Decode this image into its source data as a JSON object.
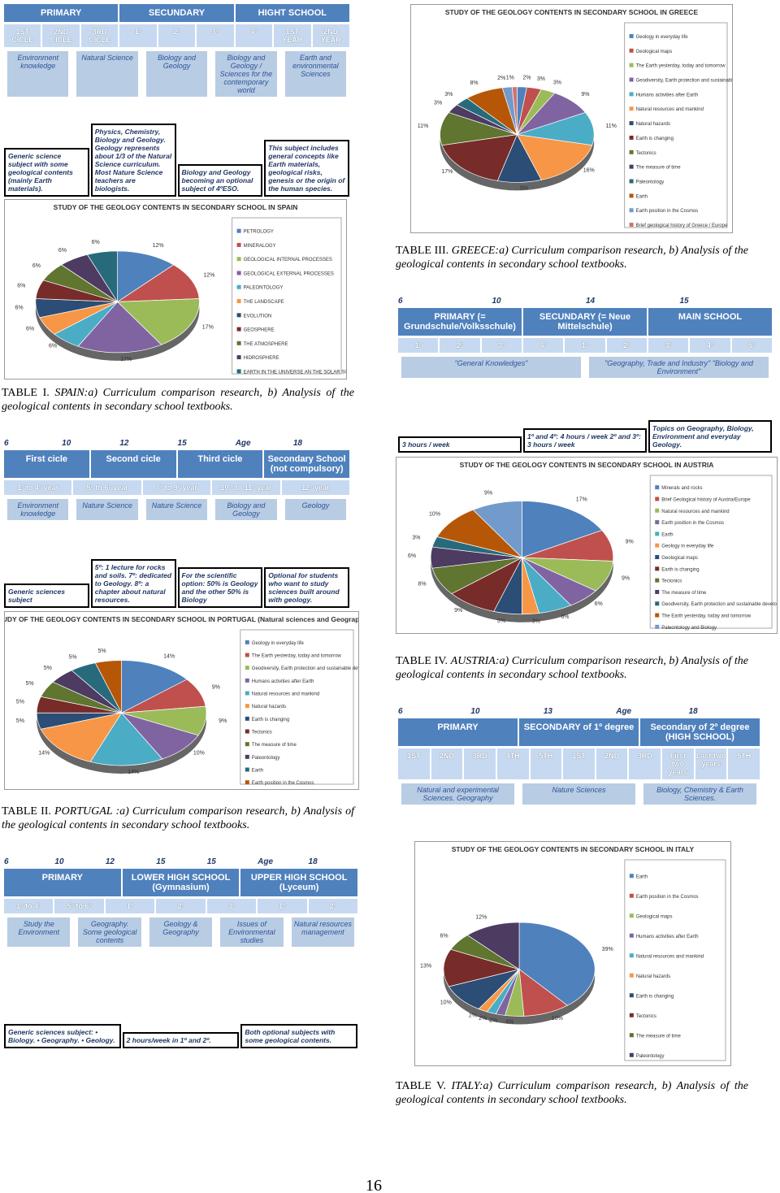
{
  "page_number": "16",
  "pie_colors": [
    "#4f81bd",
    "#c0504d",
    "#9bbb59",
    "#8064a2",
    "#4bacc6",
    "#f79646",
    "#2c4d75",
    "#772c2a",
    "#5f7530",
    "#4d3b62",
    "#276a7c",
    "#b65708",
    "#729aca",
    "#cd7371"
  ],
  "schemas": [
    {
      "ages": [],
      "headers": [
        "PRIMARY",
        "SECUNDARY",
        "HIGHT SCHOOL"
      ],
      "sub": [
        "1ST CICLE",
        "2ND CICLE",
        "3RD CICLE",
        "1º",
        "2º",
        "3º",
        "4º",
        "1ST YEAR",
        "2ND YEAR"
      ],
      "subjects": [
        "Environment knowledge",
        "Natural Science",
        "Biology and Geology",
        "Biology and Geology / Sciences for the contemporary world",
        "Earth and environmental Sciences"
      ],
      "notes": [
        "Generic science subject with some geological contents (mainly Earth materials).",
        "Physics, Chemistry, Biology and Geology. Geology represents about 1/3 of the Natural Science curriculum. Most Nature Science teachers are biologists.",
        "Biology and Geology becoming an optional subject of 4ºESO.",
        "This subject includes general concepts like Earth materials, geological risks, genesis or the origin of the human species."
      ]
    },
    {
      "ages": [
        "6",
        "10",
        "12",
        "15",
        "Age",
        "18"
      ],
      "headers": [
        "First cicle",
        "Second cicle",
        "Third cicle",
        "Secondary School (not compulsory)"
      ],
      "sub": [
        "1º to 4º year",
        "5º to 6º year",
        "7º to 9º year",
        "10 º to 11º year",
        "12º year"
      ],
      "subjects": [
        "Environment knowledge",
        "Nature Science",
        "Nature Science",
        "Biology and Geology",
        "Geology"
      ],
      "notes": [
        "Generic sciences subject",
        "5º: 1 lecture for rocks and soils. 7º: dedicated to Geology. 8º: a chapter about natural resources.",
        "For the scientific option: 50% is Geology and the other 50% is Biology",
        "Optional for students who want to study sciences built around with geology."
      ]
    },
    {
      "ages": [
        "6",
        "10",
        "12",
        "15",
        "15",
        "Age",
        "18"
      ],
      "headers": [
        "PRIMARY",
        "LOWER HIGH SCHOOL (Gymnasium)",
        "UPPER HIGH SCHOOL (Lyceum)"
      ],
      "sub": [
        "1º to 4º",
        "5º to 6º",
        "1º",
        "2º",
        "3º",
        "1º",
        "2º"
      ],
      "subjects": [
        "Study the Environment",
        "Geography. Some geological contents",
        "Geology & Geography",
        "Issues of Environmental studies",
        "Natural resources management"
      ],
      "notes": [
        "Generic sciences subject: • Biology. • Geography. • Geology.",
        "2 hours/week in 1º and 2º.",
        "Both optional subjects with some geological contents."
      ]
    },
    {
      "ages": [
        "6",
        "10",
        "14",
        "15"
      ],
      "headers": [
        "PRIMARY (= Grundschule/Volksschule)",
        "SECUNDARY (= Neue Mittelschule)",
        "MAIN SCHOOL"
      ],
      "sub": [
        "1º",
        "2º",
        "3º",
        "4º",
        "1º",
        "2º",
        "3º",
        "4º",
        "5º"
      ],
      "subjects": [
        "\"General Knowledges\"",
        "\"Geography, Trade and Industry\" \"Biology and Environment\""
      ],
      "notes": [
        "3 hours / week",
        "1º and 4º: 4 hours / week 2º and 3º: 3 hours / week",
        "Topics on Geography, Biology, Environment and everyday Geology."
      ]
    },
    {
      "ages": [
        "6",
        "10",
        "13",
        "Age",
        "18"
      ],
      "headers": [
        "PRIMARY",
        "SECONDARY of 1º degree",
        "Secondary of 2º degree (HIGH SCHOOL)"
      ],
      "sub": [
        "1ST",
        "2ND",
        "3RD",
        "4TH",
        "5TH",
        "1ST",
        "2ND",
        "3RD",
        "First two years",
        "Last two years",
        "5TH"
      ],
      "subjects": [
        "Natural and experimental Sciences. Geography",
        "Nature Sciences",
        "Biology, Chemistry & Earth Sciences."
      ],
      "notes": []
    }
  ],
  "pies": [
    {
      "title": "STUDY OF THE GEOLOGY CONTENTS IN SECONDARY SCHOOL IN SPAIN",
      "labels": [
        "PETROLOGY",
        "MINERALOGY",
        "GEOLOGICAL INTERNAL PROCESSES",
        "GEOLOGICAL EXTERNAL PROCESSES",
        "PALEONTOLOGY",
        "THE LANDSCAPE",
        "EVOLUTION",
        "GEOSPHERE",
        "THE ATMOSPHERE",
        "HIDROSPHERE",
        "EARTH IN THE UNIVERSE AN THE SOLAR SISTEM"
      ],
      "values": [
        12,
        12,
        17,
        17,
        6,
        6,
        6,
        6,
        6,
        6,
        6
      ],
      "value_labels": [
        "12%",
        "12%",
        "17%",
        "17%",
        "6%",
        "6%",
        "6%",
        "6%",
        "6%",
        "6%",
        "6%"
      ]
    },
    {
      "title": "STUDY OF THE GEOLOGY CONTENTS IN SECONDARY SCHOOL IN GREECE",
      "labels": [
        "Geology in everyday life",
        "Geological maps",
        "The Earth yesterday, today and tomorrow",
        "Geodiversity, Earth protection and sustainable development, ecosystems",
        "Humans activities after Earth",
        "Natural resources and mankind",
        "Natural hazards",
        "Earth is changing",
        "Tectonics",
        "The measure of time",
        "Paleontology",
        "Earth",
        "Earth position in the Cosmos",
        "Brief geological history of Greece / Europe"
      ],
      "values": [
        2,
        3,
        3,
        9,
        11,
        16,
        9,
        17,
        11,
        3,
        3,
        8,
        2,
        1
      ],
      "value_labels": [
        "2%",
        "3%",
        "3%",
        "9%",
        "11%",
        "16%",
        "9%",
        "17%",
        "11%",
        "3%",
        "3%",
        "8%",
        "2%",
        "1%"
      ]
    },
    {
      "title": "STUDY OF THE GEOLOGY CONTENTS IN SECONDARY SCHOOL IN PORTUGAL (Natural sciences and Geography)",
      "labels": [
        "Geology in everyday life",
        "The Earth yesterday, today and tomorrow",
        "Geodiversity, Earth protection and sustainable development",
        "Humans activities after Earth",
        "Natural resources and mankind",
        "Natural hazards",
        "Earth is changing",
        "Tectonics",
        "The measure of time",
        "Paleontology",
        "Earth",
        "Earth position in the Cosmos"
      ],
      "values": [
        14,
        9,
        9,
        10,
        14,
        14,
        5,
        5,
        5,
        5,
        5,
        5
      ],
      "value_labels": [
        "14%",
        "9%",
        "9%",
        "10%",
        "14%",
        "14%",
        "5%",
        "5%",
        "5%",
        "5%",
        "5%",
        "5%"
      ]
    },
    {
      "title": "STUDY OF THE GEOLOGY CONTENTS IN SECONDARY SCHOOL IN AUSTRIA",
      "labels": [
        "Minerals and rocks",
        "Brief Geological history of Austria/Europe",
        "Natural resources and mankind",
        "Earth position in the Cosmos",
        "Earth",
        "Geology in everyday life",
        "Geological maps",
        "Earth is changing",
        "Tectonics",
        "The measure of time",
        "Geodiversity, Earth protection and sustainable development",
        "The Earth yesterday, today and tomorrow",
        "Paleontology and Biology"
      ],
      "values": [
        17,
        9,
        9,
        6,
        6,
        3,
        5,
        9,
        8,
        6,
        3,
        10,
        9
      ],
      "value_labels": [
        "17%",
        "9%",
        "9%",
        "6%",
        "6%",
        "3%",
        "5%",
        "9%",
        "8%",
        "6%",
        "3%",
        "10%",
        "9%"
      ]
    },
    {
      "title": "STUDY OF THE GEOLOGY CONTENTS IN SECONDARY SCHOOL IN ITALY",
      "labels": [
        "Earth",
        "Earth position in the Cosmos",
        "Geological maps",
        "Humans activities after Earth",
        "Natural resources and mankind",
        "Natural hazards",
        "Earth is changing",
        "Tectonics",
        "The measure of time",
        "Paleontology"
      ],
      "values": [
        39,
        10,
        4,
        2,
        2,
        2,
        10,
        13,
        6,
        12
      ],
      "value_labels": [
        "39%",
        "10%",
        "4%",
        "2%",
        "2%",
        "2%",
        "10%",
        "13%",
        "6%",
        "12%"
      ]
    }
  ],
  "captions": [
    {
      "label": "TABLE I.",
      "text": "SPAIN:a) Curriculum comparison research, b) Analysis of the geological contents in secondary school textbooks."
    },
    {
      "label": "TABLE III.",
      "text": "GREECE:a) Curriculum comparison research, b) Analysis of the geological contents in secondary school textbooks."
    },
    {
      "label": "TABLE II.",
      "text": "PORTUGAL :a) Curriculum comparison research, b) Analysis of the geological contents in secondary school textbooks."
    },
    {
      "label": "TABLE IV.",
      "text": "AUSTRIA:a) Curriculum comparison research, b) Analysis of the geological contents in secondary school textbooks."
    },
    {
      "label": "TABLE V.",
      "text": "ITALY:a) Curriculum comparison research, b) Analysis of the geological contents in secondary school textbooks."
    }
  ]
}
